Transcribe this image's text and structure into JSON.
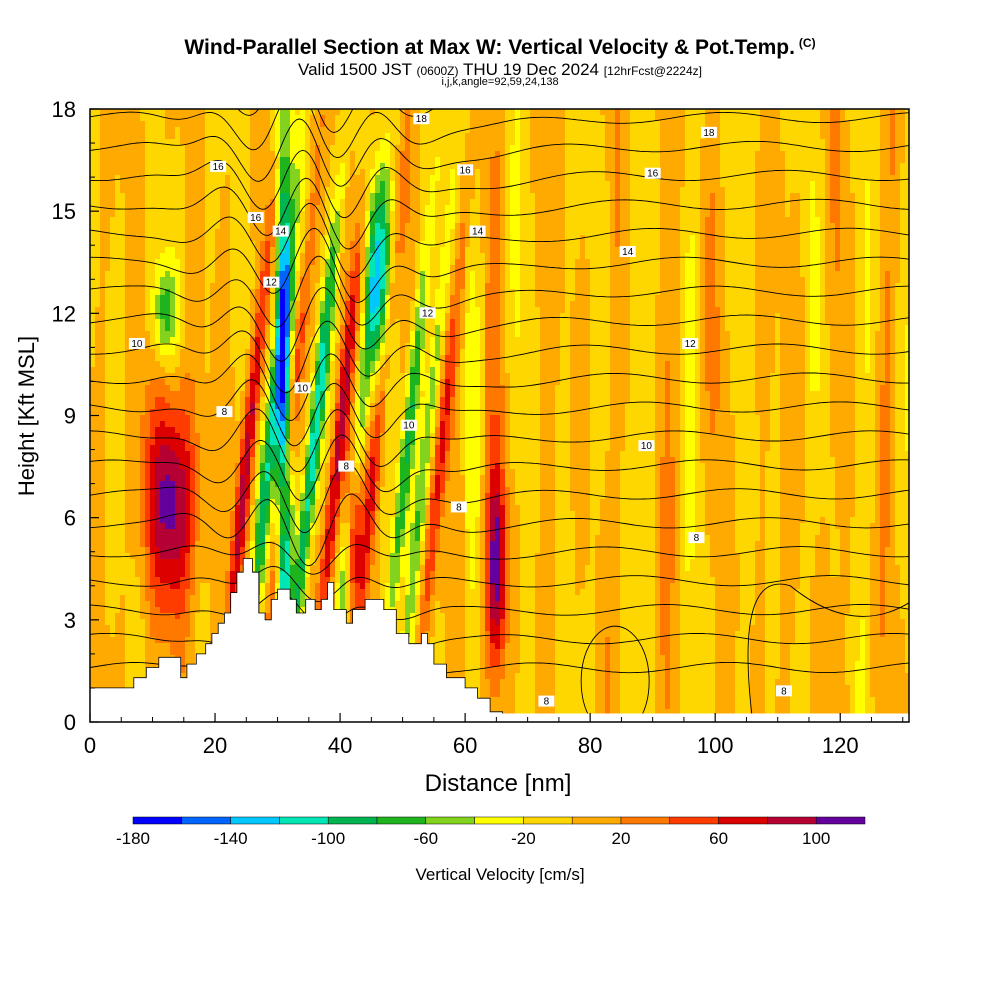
{
  "chart_data": {
    "type": "heatmap",
    "title": "Wind-Parallel Section at Max W: Vertical Velocity & Pot.Temp.",
    "title_mark": "(C)",
    "subtitle": {
      "valid": "Valid 1500 JST",
      "zulu": "(0600Z)",
      "date": "THU 19 Dec 2024",
      "forecast": "[12hrFcst@2224z]"
    },
    "grid_info": "i,j,k,angle=92,59,24,138",
    "xlabel": "Distance [nm]",
    "ylabel": "Height [Kft MSL]",
    "xlim": [
      0,
      131
    ],
    "ylim": [
      0,
      18
    ],
    "x_ticks": [
      "0",
      "20",
      "40",
      "60",
      "80",
      "100",
      "120"
    ],
    "y_ticks": [
      "0",
      "3",
      "6",
      "9",
      "12",
      "15",
      "18"
    ],
    "colorbar": {
      "label": "Vertical Velocity [cm/s]",
      "tick_labels": [
        "-180",
        "-140",
        "-100",
        "-60",
        "-20",
        "20",
        "60",
        "100"
      ],
      "colors": [
        "#0000ff",
        "#0064ff",
        "#00c8ff",
        "#00e6b4",
        "#00b450",
        "#1eb41e",
        "#82d21e",
        "#ffff00",
        "#ffd700",
        "#ffaa00",
        "#ff7800",
        "#ff3c00",
        "#dc0000",
        "#b40032",
        "#64009b"
      ]
    },
    "regions": [
      {
        "type": "updraft",
        "x": 13,
        "y": 6.5,
        "rx": 4,
        "ry": 3.2,
        "peak": 110
      },
      {
        "type": "downdraft",
        "x": 12,
        "y": 12,
        "rx": 2,
        "ry": 1.5,
        "peak": -70
      },
      {
        "type": "downdraft",
        "x": 31,
        "y": 9,
        "rx": 1.3,
        "ry": 9,
        "peak": -160
      },
      {
        "type": "updraft",
        "x": 42,
        "y": 6,
        "rx": 1.3,
        "ry": 2.5,
        "peak": 100
      },
      {
        "type": "downdraft",
        "x": 46,
        "y": 13,
        "rx": 2,
        "ry": 3,
        "peak": -100
      },
      {
        "type": "updraft",
        "x": 65,
        "y": 4.5,
        "rx": 1.6,
        "ry": 3,
        "peak": 110
      }
    ],
    "contour_labels": [
      {
        "x": 20.5,
        "y": 16.3,
        "text": "16"
      },
      {
        "x": 26.5,
        "y": 14.8,
        "text": "16"
      },
      {
        "x": 30.5,
        "y": 14.4,
        "text": "14"
      },
      {
        "x": 29,
        "y": 12.9,
        "text": "12"
      },
      {
        "x": 53,
        "y": 17.7,
        "text": "18"
      },
      {
        "x": 60,
        "y": 16.2,
        "text": "16"
      },
      {
        "x": 62,
        "y": 14.4,
        "text": "14"
      },
      {
        "x": 54,
        "y": 12,
        "text": "12"
      },
      {
        "x": 99,
        "y": 17.3,
        "text": "18"
      },
      {
        "x": 90,
        "y": 16.1,
        "text": "16"
      },
      {
        "x": 86,
        "y": 13.8,
        "text": "14"
      },
      {
        "x": 96,
        "y": 11.1,
        "text": "12"
      },
      {
        "x": 89,
        "y": 8.1,
        "text": "10"
      },
      {
        "x": 7.5,
        "y": 11.1,
        "text": "10"
      },
      {
        "x": 34,
        "y": 9.8,
        "text": "10"
      },
      {
        "x": 51,
        "y": 8.7,
        "text": "10"
      },
      {
        "x": 21.5,
        "y": 9.1,
        "text": "8"
      },
      {
        "x": 41,
        "y": 7.5,
        "text": "8"
      },
      {
        "x": 59,
        "y": 6.3,
        "text": "8"
      },
      {
        "x": 97,
        "y": 5.4,
        "text": "8"
      },
      {
        "x": 73,
        "y": 0.6,
        "text": "8"
      },
      {
        "x": 111,
        "y": 0.9,
        "text": "8"
      }
    ]
  }
}
